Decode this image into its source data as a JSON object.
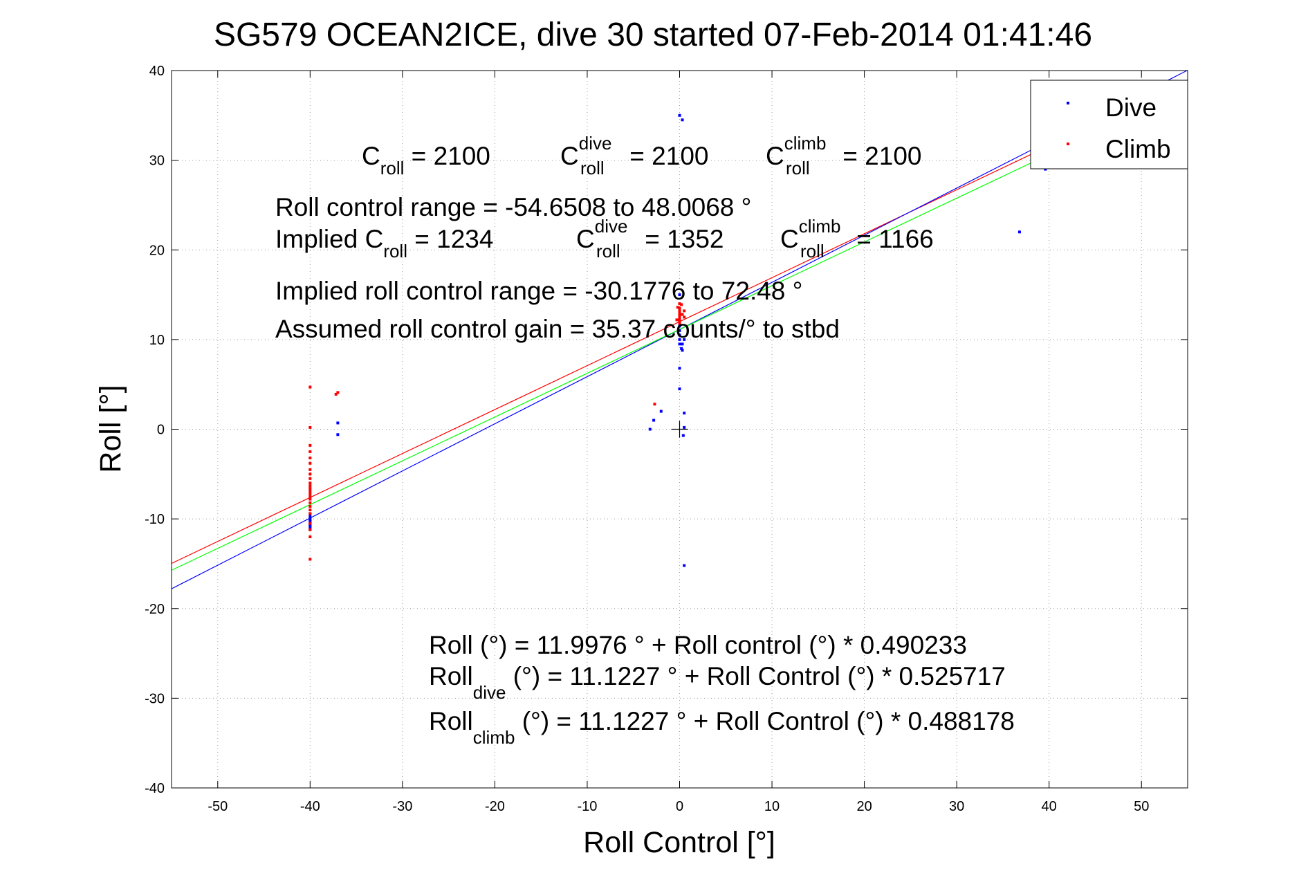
{
  "chart_data": {
    "type": "scatter",
    "title": "SG579 OCEAN2ICE, dive 30 started 07-Feb-2014 01:41:46",
    "xlabel": "Roll Control [°]",
    "ylabel": "Roll [°]",
    "xlim": [
      -55,
      55
    ],
    "ylim": [
      -40,
      40
    ],
    "xticks": [
      -50,
      -40,
      -30,
      -20,
      -10,
      0,
      10,
      20,
      30,
      40,
      50
    ],
    "yticks": [
      -40,
      -30,
      -20,
      -10,
      0,
      10,
      20,
      30,
      40
    ],
    "grid": "dotted",
    "legend": {
      "position": "top-right",
      "entries": [
        {
          "label": "Dive",
          "color": "#0000ff"
        },
        {
          "label": "Climb",
          "color": "#ff0000"
        }
      ]
    },
    "series": [
      {
        "name": "Dive",
        "color": "#0000ff",
        "points": [
          [
            -40,
            -9.5
          ],
          [
            -40,
            -9.8
          ],
          [
            -40,
            -10.0
          ],
          [
            -40,
            -10.2
          ],
          [
            -40,
            -10.3
          ],
          [
            -40,
            -10.5
          ],
          [
            -40,
            -10.6
          ],
          [
            -40,
            -10.8
          ],
          [
            -40,
            -11.0
          ],
          [
            -40,
            -11.2
          ],
          [
            -37,
            0.7
          ],
          [
            -37,
            -0.6
          ],
          [
            -3.2,
            0.0
          ],
          [
            -2.8,
            1.0
          ],
          [
            -2.0,
            2.0
          ],
          [
            0,
            35.0
          ],
          [
            0.3,
            34.5
          ],
          [
            0,
            15.0
          ],
          [
            0,
            14.0
          ],
          [
            0,
            13.0
          ],
          [
            0,
            12.0
          ],
          [
            0,
            11.5
          ],
          [
            0,
            11.0
          ],
          [
            0,
            10.5
          ],
          [
            0,
            10.0
          ],
          [
            0,
            9.5
          ],
          [
            0.2,
            9.0
          ],
          [
            0.3,
            9.5
          ],
          [
            0.5,
            10.0
          ],
          [
            0.3,
            8.8
          ],
          [
            0,
            6.8
          ],
          [
            0,
            4.5
          ],
          [
            0.5,
            1.8
          ],
          [
            0.5,
            0.2
          ],
          [
            0.4,
            -0.7
          ],
          [
            0.5,
            -15.2
          ],
          [
            36.8,
            22.0
          ],
          [
            39.6,
            29.0
          ]
        ]
      },
      {
        "name": "Climb",
        "color": "#ff0000",
        "points": [
          [
            -40,
            4.7
          ],
          [
            -40,
            0.2
          ],
          [
            -40,
            -1.8
          ],
          [
            -40,
            -2.5
          ],
          [
            -40,
            -3.2
          ],
          [
            -40,
            -3.8
          ],
          [
            -40,
            -4.5
          ],
          [
            -40,
            -5.0
          ],
          [
            -40,
            -5.5
          ],
          [
            -40,
            -6.0
          ],
          [
            -40,
            -6.3
          ],
          [
            -40,
            -6.6
          ],
          [
            -40,
            -6.9
          ],
          [
            -40,
            -7.2
          ],
          [
            -40,
            -7.5
          ],
          [
            -40,
            -7.8
          ],
          [
            -40,
            -8.2
          ],
          [
            -40,
            -8.6
          ],
          [
            -40,
            -9.0
          ],
          [
            -40,
            -9.4
          ],
          [
            -40,
            -10.5
          ],
          [
            -40,
            -11.2
          ],
          [
            -40,
            -12.0
          ],
          [
            -40,
            -14.5
          ],
          [
            -37.2,
            3.9
          ],
          [
            -37,
            4.1
          ],
          [
            -2.7,
            2.8
          ],
          [
            0,
            14.0
          ],
          [
            0,
            13.5
          ],
          [
            0,
            13.2
          ],
          [
            0,
            13.0
          ],
          [
            0,
            12.8
          ],
          [
            0,
            12.6
          ],
          [
            0,
            12.4
          ],
          [
            0,
            12.2
          ],
          [
            0,
            12.0
          ],
          [
            0,
            11.8
          ],
          [
            0.3,
            12.8
          ],
          [
            0.5,
            13.2
          ],
          [
            0.5,
            12.5
          ],
          [
            -0.3,
            12.2
          ],
          [
            -0.2,
            13.6
          ],
          [
            0.2,
            13.9
          ]
        ]
      }
    ],
    "fit_lines": [
      {
        "name": "Roll fit",
        "color": "#ff0000",
        "intercept": 11.9976,
        "slope": 0.490233
      },
      {
        "name": "Roll dive fit",
        "color": "#0000ff",
        "intercept": 11.1227,
        "slope": 0.525717
      },
      {
        "name": "Roll climb fit",
        "color": "#00ff00",
        "intercept": 11.1227,
        "slope": 0.488178
      }
    ],
    "origin_marker": [
      0,
      0
    ],
    "annotations": {
      "gains": [
        {
          "base": "C",
          "sub": "roll",
          "sup": "",
          "rest": " = 2100"
        },
        {
          "base": "C",
          "sub": "roll",
          "sup": "dive",
          "rest": " = 2100"
        },
        {
          "base": "C",
          "sub": "roll",
          "sup": "climb",
          "rest": " = 2100"
        }
      ],
      "range_line": "Roll control range = -54.6508 to 48.0068 °",
      "implied_prefix": "Implied ",
      "implied": [
        {
          "base": "C",
          "sub": "roll",
          "sup": "",
          "rest": " = 1234"
        },
        {
          "base": "C",
          "sub": "roll",
          "sup": "dive",
          "rest": " = 1352"
        },
        {
          "base": "C",
          "sub": "roll",
          "sup": "climb",
          "rest": " = 1166"
        }
      ],
      "implied_range_line": "Implied roll control range = -30.1776 to 72.48 °",
      "gain_line": "Assumed roll control gain = 35.37 counts/° to stbd",
      "eq1": "Roll (°) = 11.9976 ° + Roll control (°) * 0.490233",
      "eq2_base": "Roll",
      "eq2_sub": "dive",
      "eq2_rest": " (°) = 11.1227 ° + Roll Control (°) * 0.525717",
      "eq3_base": "Roll",
      "eq3_sub": "climb",
      "eq3_rest": " (°) = 11.1227 ° + Roll Control (°) * 0.488178"
    }
  }
}
